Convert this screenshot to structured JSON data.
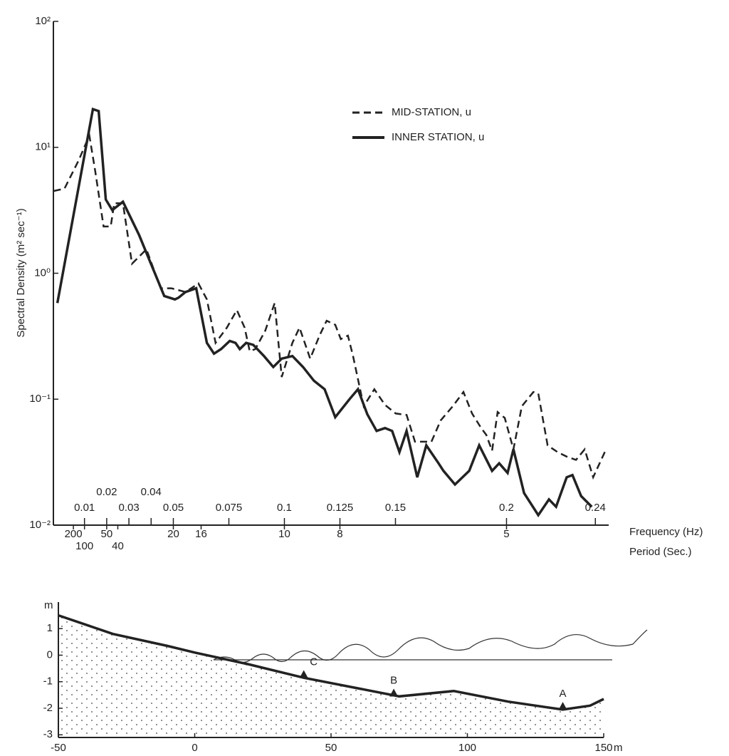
{
  "chart_data": [
    {
      "type": "line",
      "log_y": true,
      "ylabel": "Spectral Density (m² sec⁻¹)",
      "xlabel": "Frequency (Hz)",
      "period_label": "Period (Sec.)",
      "xlim": [
        -0.004,
        0.246
      ],
      "ylim": [
        0.01,
        100
      ],
      "yticks": [
        {
          "value": 0.01,
          "label": "10⁻²"
        },
        {
          "value": 0.1,
          "label": "10⁻¹"
        },
        {
          "value": 1,
          "label": "10⁰"
        },
        {
          "value": 10,
          "label": "10¹"
        },
        {
          "value": 100,
          "label": "10²"
        }
      ],
      "xticks": [
        0.01,
        0.02,
        0.03,
        0.04,
        0.05,
        0.075,
        0.1,
        0.125,
        0.15,
        0.2,
        0.24
      ],
      "period_ticks": [
        200,
        100,
        50,
        40,
        20,
        16,
        10,
        8,
        5
      ],
      "legend": "upper right",
      "series": [
        {
          "name": "MID-STATION, u",
          "color": "#222",
          "dash": true,
          "x": [
            -0.0038,
            0.001,
            0.0074,
            0.0122,
            0.0148,
            0.0186,
            0.0218,
            0.0234,
            0.0273,
            0.0314,
            0.0379,
            0.0443,
            0.0491,
            0.0555,
            0.0613,
            0.0651,
            0.069,
            0.0741,
            0.0786,
            0.0821,
            0.0844,
            0.0869,
            0.0914,
            0.0956,
            0.0988,
            0.1036,
            0.1068,
            0.1116,
            0.1158,
            0.119,
            0.1229,
            0.1254,
            0.1286,
            0.1309,
            0.1357,
            0.1405,
            0.1453,
            0.1501,
            0.155,
            0.1588,
            0.1662,
            0.1704,
            0.1758,
            0.1806,
            0.1845,
            0.1886,
            0.1909,
            0.1935,
            0.196,
            0.1992,
            0.2031,
            0.2069,
            0.2121,
            0.2143,
            0.2185,
            0.223,
            0.2271,
            0.2313,
            0.2352,
            0.239,
            0.2448
          ],
          "values": [
            4.5,
            4.7,
            7.9,
            12.4,
            6.5,
            2.35,
            2.35,
            3.6,
            3.6,
            1.19,
            1.55,
            0.76,
            0.76,
            0.71,
            0.83,
            0.62,
            0.28,
            0.37,
            0.51,
            0.37,
            0.24,
            0.25,
            0.35,
            0.58,
            0.15,
            0.28,
            0.37,
            0.21,
            0.32,
            0.42,
            0.39,
            0.3,
            0.32,
            0.22,
            0.088,
            0.12,
            0.09,
            0.077,
            0.075,
            0.046,
            0.046,
            0.068,
            0.088,
            0.114,
            0.077,
            0.059,
            0.052,
            0.039,
            0.079,
            0.071,
            0.04,
            0.088,
            0.114,
            0.111,
            0.043,
            0.038,
            0.035,
            0.033,
            0.04,
            0.024,
            0.04
          ]
        },
        {
          "name": "INNER STATION, u",
          "color": "#222",
          "dash": false,
          "x": [
            -0.0022,
            0.0138,
            0.0164,
            0.0196,
            0.0225,
            0.0273,
            0.0346,
            0.0459,
            0.0507,
            0.0523,
            0.0555,
            0.0603,
            0.0651,
            0.0683,
            0.0715,
            0.0754,
            0.078,
            0.0799,
            0.0828,
            0.086,
            0.0908,
            0.095,
            0.0988,
            0.1036,
            0.1084,
            0.1133,
            0.1181,
            0.1229,
            0.1293,
            0.1331,
            0.1373,
            0.1415,
            0.1453,
            0.1485,
            0.1518,
            0.155,
            0.1598,
            0.1639,
            0.1694,
            0.1716,
            0.1768,
            0.1832,
            0.1877,
            0.1935,
            0.1967,
            0.2005,
            0.2031,
            0.2079,
            0.2143,
            0.2191,
            0.2223,
            0.2271,
            0.2297,
            0.2336,
            0.2384
          ],
          "values": [
            0.58,
            20.1,
            19.4,
            3.85,
            3.17,
            3.7,
            2.01,
            0.66,
            0.62,
            0.64,
            0.71,
            0.76,
            0.28,
            0.23,
            0.25,
            0.29,
            0.28,
            0.25,
            0.28,
            0.27,
            0.22,
            0.18,
            0.21,
            0.22,
            0.18,
            0.14,
            0.12,
            0.072,
            0.1,
            0.12,
            0.076,
            0.056,
            0.059,
            0.056,
            0.038,
            0.056,
            0.024,
            0.043,
            0.031,
            0.027,
            0.021,
            0.027,
            0.043,
            0.027,
            0.031,
            0.026,
            0.04,
            0.018,
            0.012,
            0.016,
            0.014,
            0.024,
            0.025,
            0.017,
            0.014
          ]
        }
      ]
    },
    {
      "type": "area",
      "ylabel": "m",
      "xlabel": "m",
      "xlim": [
        -50,
        150
      ],
      "ylim": [
        -3.1,
        2
      ],
      "xticks": [
        -50,
        0,
        50,
        100,
        150
      ],
      "yticks": [
        1,
        0,
        -1,
        -2,
        -3
      ],
      "x": [
        -50,
        -30,
        -10,
        0,
        20,
        40,
        60,
        75,
        95,
        115,
        135,
        145,
        150
      ],
      "values": [
        1.5,
        0.8,
        0.35,
        0.1,
        -0.35,
        -0.85,
        -1.25,
        -1.55,
        -1.35,
        -1.75,
        -2.05,
        -1.9,
        -1.65
      ],
      "annotations": [
        {
          "text": "C",
          "x": 40,
          "y": -0.75
        },
        {
          "text": "B",
          "x": 73,
          "y": -1.45
        },
        {
          "text": "A",
          "x": 135,
          "y": -1.95
        }
      ]
    }
  ]
}
